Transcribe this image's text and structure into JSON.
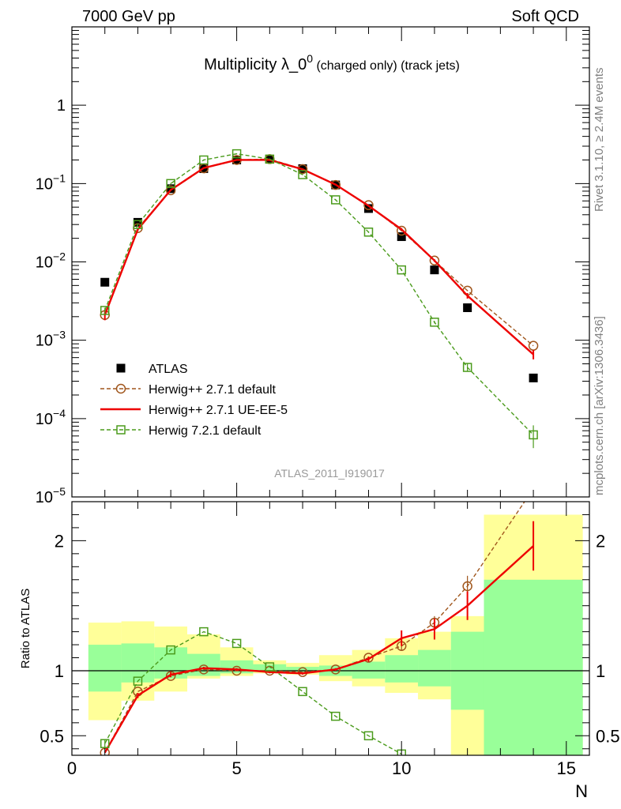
{
  "header": {
    "left": "7000 GeV pp",
    "right": "Soft QCD"
  },
  "side_labels": {
    "top": "Rivet 3.1.10, ≥ 2.4M events",
    "bottom": "mcplots.cern.ch [arXiv:1306.3436]"
  },
  "chart_data": [
    {
      "panel": "main",
      "type": "scatter",
      "title_main": "Multiplicity λ_0",
      "title_sup": "0",
      "title_rest": " (charged only) (track jets)",
      "analysis_tag": "ATLAS_2011_I919017",
      "yscale": "log",
      "ylim": [
        1e-05,
        10
      ],
      "xlim": [
        0,
        15.7
      ],
      "yticks": [
        {
          "v": 1e-05,
          "b": "10",
          "e": "−5"
        },
        {
          "v": 0.0001,
          "b": "10",
          "e": "−4"
        },
        {
          "v": 0.001,
          "b": "10",
          "e": "−3"
        },
        {
          "v": 0.01,
          "b": "10",
          "e": "−2"
        },
        {
          "v": 0.1,
          "b": "10",
          "e": "−1"
        },
        {
          "v": 1,
          "b": "1",
          "e": ""
        }
      ],
      "legend_position": "bottom-left",
      "series": [
        {
          "name": "ATLAS",
          "style": "data",
          "color": "#000000",
          "x": [
            1,
            2,
            3,
            4,
            5,
            6,
            7,
            8,
            9,
            10,
            11,
            12,
            14
          ],
          "y": [
            0.0055,
            0.032,
            0.086,
            0.155,
            0.2,
            0.205,
            0.155,
            0.096,
            0.048,
            0.021,
            0.0079,
            0.0026,
            0.00033
          ]
        },
        {
          "name": "Herwig++ 2.7.1 default",
          "style": "dashed-circle",
          "color": "#a0561c",
          "x": [
            1,
            2,
            3,
            4,
            5,
            6,
            7,
            8,
            9,
            10,
            11,
            12,
            14
          ],
          "y": [
            0.0021,
            0.027,
            0.082,
            0.156,
            0.2,
            0.205,
            0.153,
            0.096,
            0.053,
            0.025,
            0.0104,
            0.0043,
            0.00085
          ]
        },
        {
          "name": "Herwig++ 2.7.1 UE-EE-5",
          "style": "solid",
          "color": "#ee0000",
          "x": [
            1,
            2,
            3,
            4,
            5,
            6,
            7,
            8,
            9,
            10,
            11,
            12,
            14
          ],
          "y": [
            0.0021,
            0.026,
            0.083,
            0.158,
            0.2,
            0.2,
            0.152,
            0.097,
            0.052,
            0.026,
            0.0104,
            0.0037,
            0.00066
          ],
          "yerr": [
            0.0003,
            0.001,
            0.002,
            0.003,
            0.003,
            0.003,
            0.003,
            0.002,
            0.001,
            0.001,
            0.0004,
            0.0003,
            9e-05
          ]
        },
        {
          "name": "Herwig 7.2.1 default",
          "style": "dashed-square",
          "color": "#4b9b1c",
          "x": [
            1,
            2,
            3,
            4,
            5,
            6,
            7,
            8,
            9,
            10,
            11,
            12,
            14
          ],
          "y": [
            0.0024,
            0.03,
            0.1,
            0.2,
            0.24,
            0.205,
            0.13,
            0.062,
            0.024,
            0.0079,
            0.0017,
            0.00045,
            6.2e-05
          ],
          "yerr": [
            0.0002,
            0.001,
            0.002,
            0.003,
            0.003,
            0.003,
            0.002,
            0.001,
            0.0005,
            0.0002,
            6e-05,
            5e-05,
            2e-05
          ]
        }
      ]
    },
    {
      "panel": "ratio",
      "type": "line",
      "ylabel": "Ratio to ATLAS",
      "xlabel": "N",
      "ylim": [
        0.35,
        2.3
      ],
      "xlim": [
        0,
        15.7
      ],
      "yticks": [
        0.5,
        1,
        2
      ],
      "ytick_labels": [
        "0.5",
        "1",
        "2"
      ],
      "xticks": [
        0,
        5,
        10,
        15
      ],
      "xtick_labels": [
        "0",
        "5",
        "10",
        "15"
      ],
      "bands": {
        "edges": [
          0.5,
          1.5,
          2.5,
          3.5,
          4.5,
          5.5,
          6.5,
          7.5,
          8.5,
          9.5,
          10.5,
          11.5,
          12.5,
          15.5
        ],
        "yellow_lo": [
          0.62,
          0.77,
          0.84,
          0.94,
          0.96,
          0.98,
          0.97,
          0.92,
          0.88,
          0.83,
          0.78,
          0.35,
          0.35
        ],
        "yellow_hi": [
          1.37,
          1.38,
          1.34,
          1.28,
          1.18,
          1.08,
          1.06,
          1.12,
          1.16,
          1.25,
          1.3,
          1.42,
          2.2
        ],
        "green_lo": [
          0.84,
          0.91,
          0.94,
          0.96,
          0.98,
          0.99,
          0.99,
          0.96,
          0.94,
          0.91,
          0.88,
          0.7,
          0.35
        ],
        "green_hi": [
          1.2,
          1.21,
          1.18,
          1.13,
          1.08,
          1.05,
          1.03,
          1.04,
          1.07,
          1.12,
          1.16,
          1.3,
          1.7
        ],
        "yellow_color": "#ffff99",
        "green_color": "#99ff99"
      },
      "series": [
        {
          "name": "Herwig++ 2.7.1 default",
          "color": "#a0561c",
          "style": "dashed-circle",
          "x": [
            1,
            2,
            3,
            4,
            5,
            6,
            7,
            8,
            9,
            10,
            11,
            12,
            14
          ],
          "y": [
            0.37,
            0.84,
            0.96,
            1.01,
            1.0,
            1.0,
            0.99,
            1.01,
            1.1,
            1.19,
            1.37,
            1.65,
            2.4
          ],
          "yerr": [
            0,
            0,
            0,
            0,
            0,
            0,
            0,
            0,
            0,
            0.03,
            0.05,
            0.08,
            0
          ]
        },
        {
          "name": "Herwig++ 2.7.1 UE-EE-5",
          "color": "#ee0000",
          "style": "solid",
          "x": [
            1,
            2,
            3,
            4,
            5,
            6,
            7,
            8,
            9,
            10,
            11,
            12,
            14
          ],
          "y": [
            0.37,
            0.81,
            0.97,
            1.02,
            1.01,
            0.99,
            0.98,
            1.01,
            1.09,
            1.25,
            1.32,
            1.5,
            1.96
          ],
          "yerr": [
            0,
            0.02,
            0.02,
            0.01,
            0.01,
            0.01,
            0.01,
            0.01,
            0.02,
            0.06,
            0.08,
            0.11,
            0.19
          ]
        },
        {
          "name": "Herwig 7.2.1 default",
          "color": "#4b9b1c",
          "style": "dashed-square",
          "x": [
            1,
            2,
            3,
            4,
            5,
            6,
            7,
            8,
            9,
            10
          ],
          "y": [
            0.44,
            0.92,
            1.16,
            1.3,
            1.21,
            1.03,
            0.84,
            0.65,
            0.5,
            0.36
          ],
          "yerr": [
            0.03,
            0,
            0,
            0,
            0,
            0,
            0,
            0,
            0,
            0
          ]
        }
      ]
    }
  ]
}
